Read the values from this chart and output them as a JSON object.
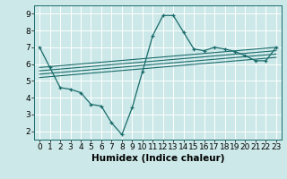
{
  "xlabel": "Humidex (Indice chaleur)",
  "bg_color": "#cce8e8",
  "line_color": "#1a6b6b",
  "grid_color": "#ffffff",
  "xlim": [
    -0.5,
    23.5
  ],
  "ylim": [
    1.5,
    9.5
  ],
  "xticks": [
    0,
    1,
    2,
    3,
    4,
    5,
    6,
    7,
    8,
    9,
    10,
    11,
    12,
    13,
    14,
    15,
    16,
    17,
    18,
    19,
    20,
    21,
    22,
    23
  ],
  "yticks": [
    2,
    3,
    4,
    5,
    6,
    7,
    8,
    9
  ],
  "line1_x": [
    0,
    1,
    2,
    3,
    4,
    5,
    6,
    7,
    8,
    9,
    10,
    11,
    12,
    13,
    14,
    15,
    16,
    17,
    18,
    19,
    20,
    21,
    22,
    23
  ],
  "line1_y": [
    7.0,
    5.8,
    4.6,
    4.5,
    4.3,
    3.6,
    3.5,
    2.5,
    1.8,
    3.4,
    5.55,
    7.7,
    8.9,
    8.9,
    7.9,
    6.9,
    6.8,
    7.0,
    6.9,
    6.75,
    6.5,
    6.2,
    6.2,
    7.0
  ],
  "line2_x": [
    0,
    23
  ],
  "line2_y": [
    5.8,
    7.0
  ],
  "line3_x": [
    0,
    23
  ],
  "line3_y": [
    5.6,
    6.8
  ],
  "line4_x": [
    0,
    23
  ],
  "line4_y": [
    5.4,
    6.6
  ],
  "line5_x": [
    0,
    23
  ],
  "line5_y": [
    5.2,
    6.4
  ],
  "tick_fontsize": 6.5,
  "label_fontsize": 7.5
}
